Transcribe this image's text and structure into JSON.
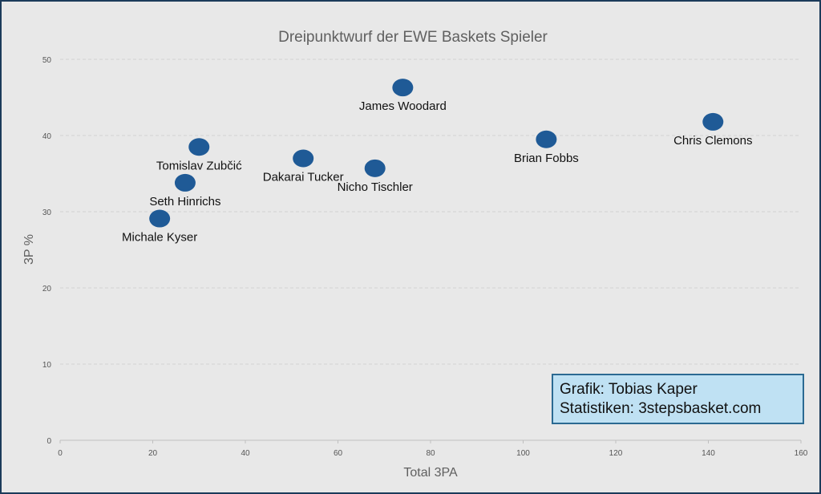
{
  "chart_data": {
    "type": "scatter",
    "title": "Dreipunktwurf der EWE Baskets Spieler",
    "xlabel": "Total 3PA",
    "ylabel": "3P %",
    "xlim": [
      0,
      160
    ],
    "ylim": [
      0,
      50
    ],
    "xticks": [
      0,
      20,
      40,
      60,
      80,
      100,
      120,
      140,
      160
    ],
    "yticks": [
      0,
      10,
      20,
      30,
      40,
      50
    ],
    "grid": "horizontal-dashed",
    "points": [
      {
        "label": "James Woodard",
        "x": 74,
        "y": 46.3
      },
      {
        "label": "Chris Clemons",
        "x": 141,
        "y": 41.8
      },
      {
        "label": "Brian Fobbs",
        "x": 105,
        "y": 39.5
      },
      {
        "label": "Tomislav Zubčić",
        "x": 30,
        "y": 38.5
      },
      {
        "label": "Dakarai Tucker",
        "x": 52.5,
        "y": 37
      },
      {
        "label": "Nicho Tischler",
        "x": 68,
        "y": 35.7
      },
      {
        "label": "Seth Hinrichs",
        "x": 27,
        "y": 33.8
      },
      {
        "label": "Michale Kyser",
        "x": 21.5,
        "y": 29.1
      }
    ],
    "marker_color": "#1f5a96"
  },
  "credit": {
    "line1": "Grafik: Tobias Kaper",
    "line2": "Statistiken: 3stepsbasket.com"
  }
}
